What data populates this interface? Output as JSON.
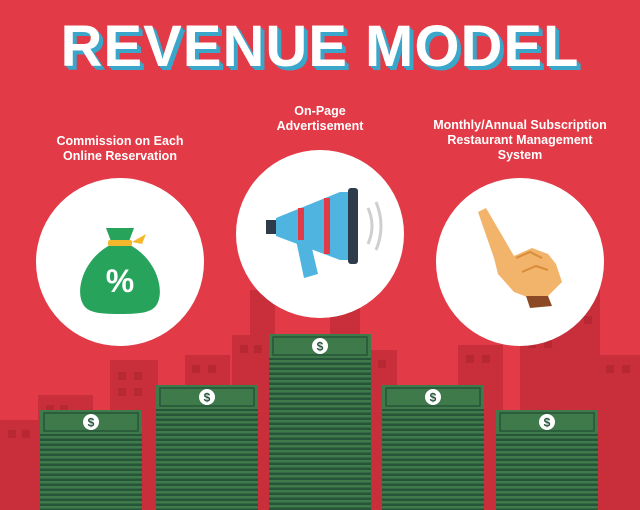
{
  "title": "REVENUE MODEL",
  "columns": [
    {
      "label_lines": [
        "Commission on Each",
        "Online Reservation"
      ],
      "icon": "money-bag-percent-icon",
      "symbol": "%"
    },
    {
      "label_lines": [
        "On-Page",
        "Advertisement"
      ],
      "icon": "megaphone-icon"
    },
    {
      "label_lines": [
        "Monthly/Annual Subscription",
        "Restaurant Management",
        "System"
      ],
      "icon": "pointing-hand-icon"
    }
  ],
  "money": {
    "symbol": "$"
  },
  "colors": {
    "background": "#e23a46",
    "buildings": "#c92f3b",
    "title_shadow": "#3aa6c9",
    "money_green": "#3f7a4a",
    "money_dark": "#27553a",
    "bag_green": "#27a35c",
    "megaphone_blue": "#4fb4e0",
    "hand_skin": "#f2b36b"
  }
}
